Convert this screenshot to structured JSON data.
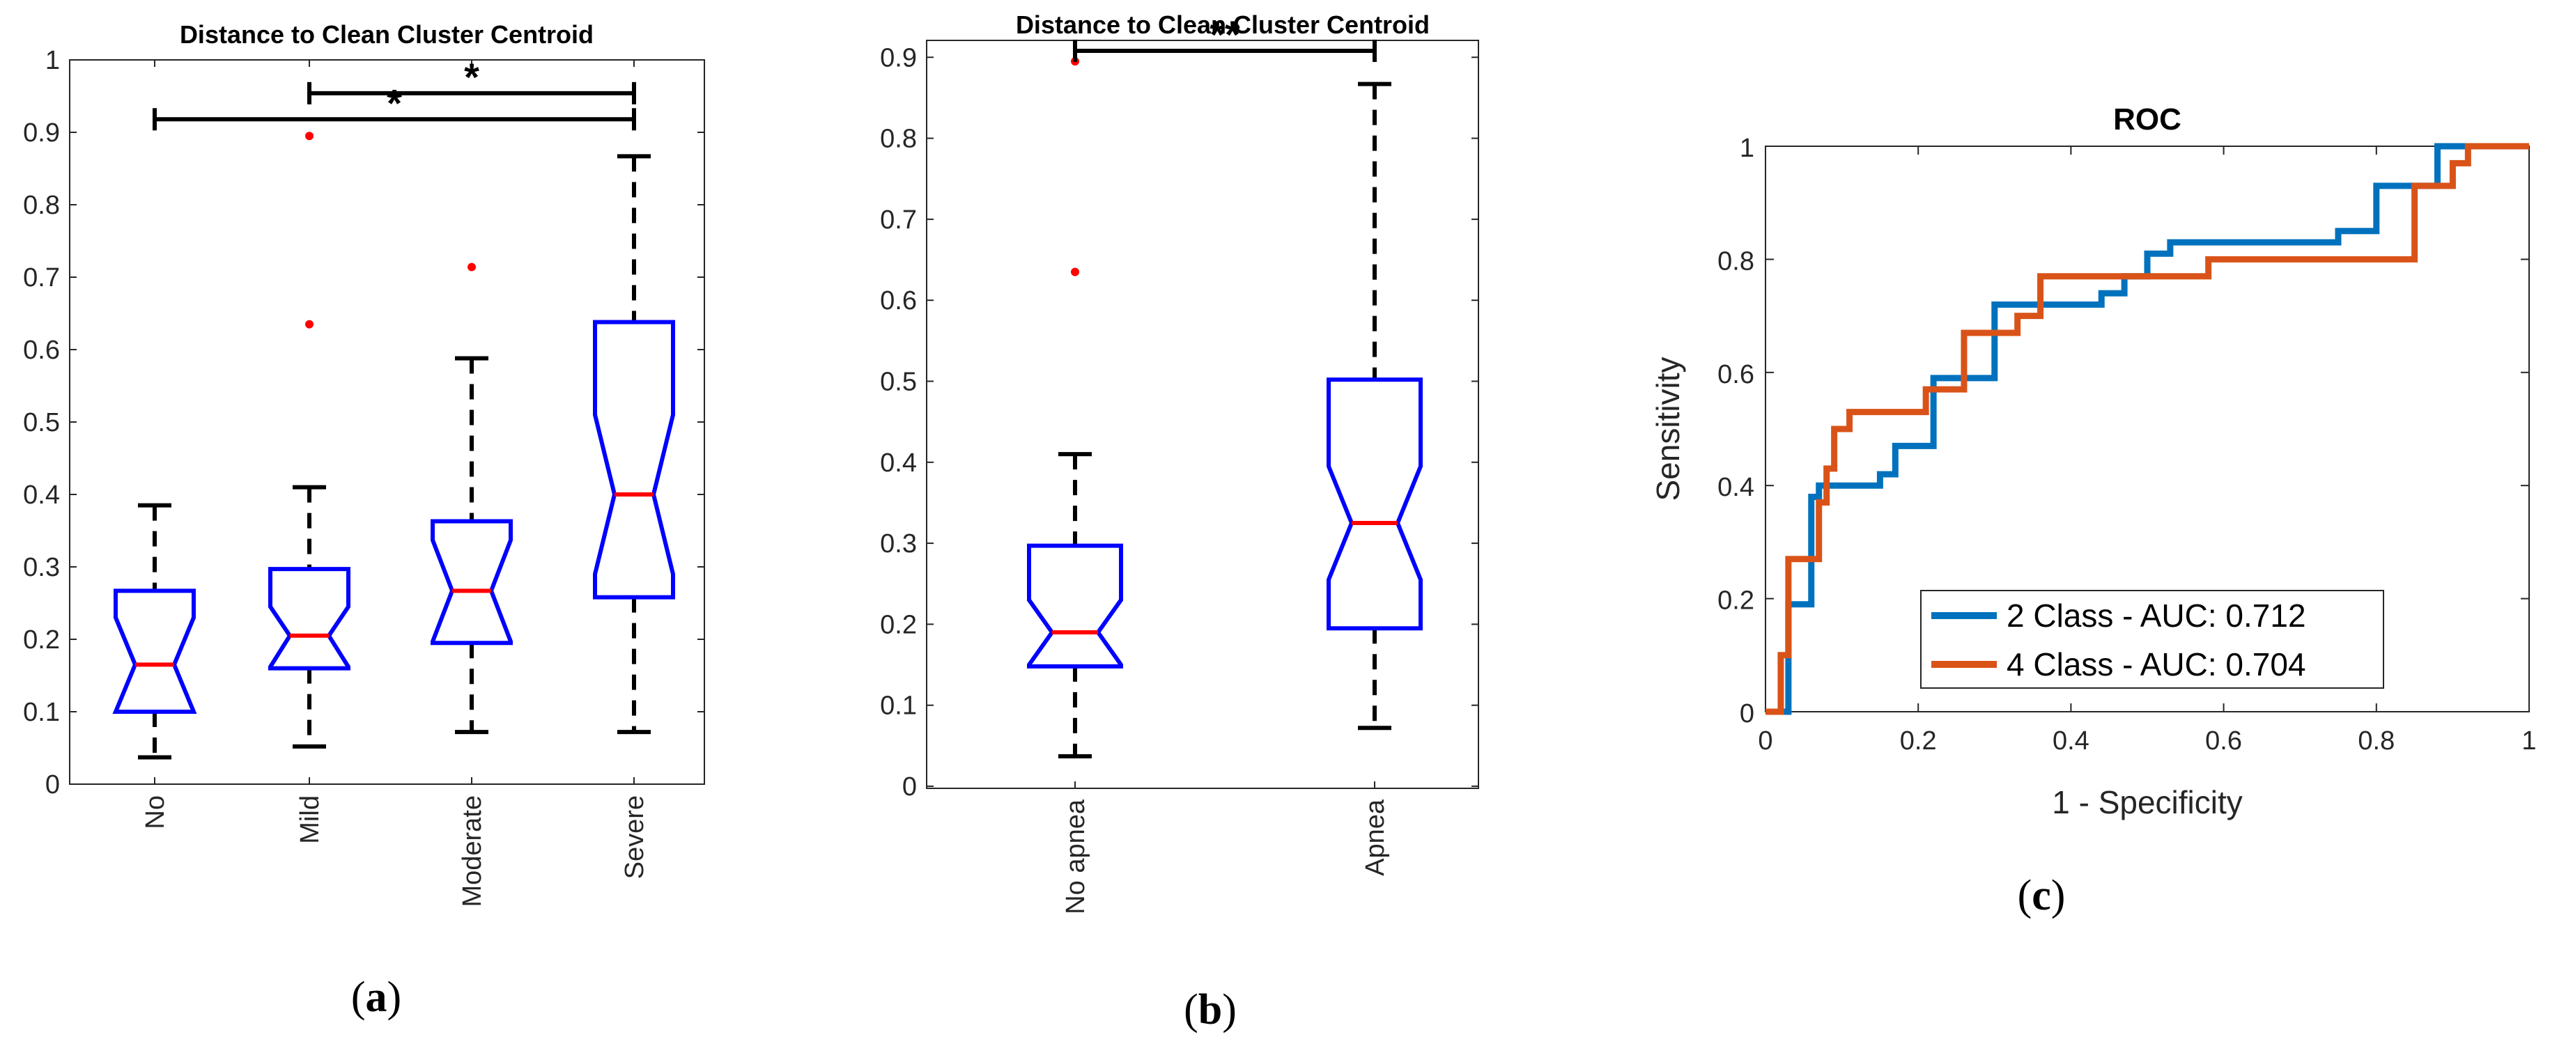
{
  "chart_data": [
    {
      "type": "boxplot",
      "panel": "a",
      "title": "Distance to Clean Cluster Centroid",
      "categories": [
        "No",
        "Mild",
        "Moderate",
        "Severe"
      ],
      "ylim": [
        0,
        1
      ],
      "yticks": [
        0,
        0.1,
        0.2,
        0.3,
        0.4,
        0.5,
        0.6,
        0.7,
        0.8,
        0.9,
        1
      ],
      "ytick_labels": [
        "0",
        "0.1",
        "0.2",
        "0.3",
        "0.4",
        "0.5",
        "0.6",
        "0.7",
        "0.8",
        "0.9",
        "1"
      ],
      "notched": true,
      "boxes": [
        {
          "name": "No",
          "whisker_low": 0.037,
          "q1": 0.1,
          "median": 0.165,
          "q3": 0.267,
          "whisker_high": 0.385,
          "notch_low": 0.1,
          "notch_high": 0.23,
          "outliers": []
        },
        {
          "name": "Mild",
          "whisker_low": 0.052,
          "q1": 0.16,
          "median": 0.205,
          "q3": 0.297,
          "whisker_high": 0.41,
          "notch_low": 0.162,
          "notch_high": 0.245,
          "outliers": [
            0.635,
            0.895
          ]
        },
        {
          "name": "Moderate",
          "whisker_low": 0.072,
          "q1": 0.195,
          "median": 0.267,
          "q3": 0.363,
          "whisker_high": 0.588,
          "notch_low": 0.197,
          "notch_high": 0.337,
          "outliers": [
            0.714
          ]
        },
        {
          "name": "Severe",
          "whisker_low": 0.072,
          "q1": 0.258,
          "median": 0.4,
          "q3": 0.638,
          "whisker_high": 0.867,
          "notch_low": 0.29,
          "notch_high": 0.51,
          "outliers": []
        }
      ],
      "significance": [
        {
          "from": "Mild",
          "to": "Severe",
          "y": 0.954,
          "label": "*"
        },
        {
          "from": "No",
          "to": "Severe",
          "y": 0.918,
          "label": "*"
        }
      ],
      "caption": "(a)"
    },
    {
      "type": "boxplot",
      "panel": "b",
      "title": "Distance to Clean Cluster Centroid",
      "categories": [
        "No apnea",
        "Apnea"
      ],
      "ylim": [
        0,
        0.92
      ],
      "yticks": [
        0,
        0.1,
        0.2,
        0.3,
        0.4,
        0.5,
        0.6,
        0.7,
        0.8,
        0.9
      ],
      "ytick_labels": [
        "0",
        "0.1",
        "0.2",
        "0.3",
        "0.4",
        "0.5",
        "0.6",
        "0.7",
        "0.8",
        "0.9"
      ],
      "notched": true,
      "boxes": [
        {
          "name": "No apnea",
          "whisker_low": 0.037,
          "q1": 0.148,
          "median": 0.19,
          "q3": 0.297,
          "whisker_high": 0.41,
          "notch_low": 0.15,
          "notch_high": 0.23,
          "outliers": [
            0.635,
            0.895
          ]
        },
        {
          "name": "Apnea",
          "whisker_low": 0.072,
          "q1": 0.195,
          "median": 0.325,
          "q3": 0.502,
          "whisker_high": 0.867,
          "notch_low": 0.255,
          "notch_high": 0.395,
          "outliers": []
        }
      ],
      "significance": [
        {
          "from": "No apnea",
          "to": "Apnea",
          "y": 0.908,
          "label": "**"
        }
      ],
      "caption": "(b)"
    },
    {
      "type": "line",
      "panel": "c",
      "title": "ROC",
      "xlabel": "1 - Specificity",
      "ylabel": "Sensitivity",
      "xlim": [
        0,
        1
      ],
      "ylim": [
        0,
        1
      ],
      "xticks": [
        0,
        0.2,
        0.4,
        0.6,
        0.8,
        1
      ],
      "xtick_labels": [
        "0",
        "0.2",
        "0.4",
        "0.6",
        "0.8",
        "1"
      ],
      "yticks": [
        0,
        0.2,
        0.4,
        0.6,
        0.8,
        1
      ],
      "ytick_labels": [
        "0",
        "0.2",
        "0.4",
        "0.6",
        "0.8",
        "1"
      ],
      "legend_position": "bottom-right",
      "series": [
        {
          "name": "2 Class - AUC: 0.712",
          "color": "#0072BD",
          "x": [
            0,
            0.03,
            0.03,
            0.04,
            0.04,
            0.06,
            0.06,
            0.07,
            0.07,
            0.12,
            0.12,
            0.15,
            0.15,
            0.17,
            0.17,
            0.22,
            0.22,
            0.27,
            0.27,
            0.3,
            0.3,
            0.38,
            0.38,
            0.44,
            0.44,
            0.47,
            0.47,
            0.5,
            0.5,
            0.53,
            0.53,
            0.75,
            0.75,
            0.8,
            0.8,
            0.88,
            0.88,
            1
          ],
          "y": [
            0,
            0,
            0.19,
            0.19,
            0.19,
            0.19,
            0.38,
            0.38,
            0.4,
            0.4,
            0.4,
            0.4,
            0.42,
            0.42,
            0.47,
            0.47,
            0.59,
            0.59,
            0.59,
            0.59,
            0.72,
            0.72,
            0.72,
            0.72,
            0.74,
            0.74,
            0.77,
            0.77,
            0.81,
            0.81,
            0.83,
            0.83,
            0.85,
            0.85,
            0.93,
            0.93,
            1,
            1
          ]
        },
        {
          "name": "4 Class - AUC: 0.704",
          "color": "#D95319",
          "x": [
            0,
            0.02,
            0.02,
            0.03,
            0.03,
            0.07,
            0.07,
            0.08,
            0.08,
            0.09,
            0.09,
            0.11,
            0.11,
            0.21,
            0.21,
            0.26,
            0.26,
            0.33,
            0.33,
            0.36,
            0.36,
            0.58,
            0.58,
            0.85,
            0.85,
            0.9,
            0.9,
            0.92,
            0.92,
            1
          ],
          "y": [
            0,
            0,
            0.1,
            0.1,
            0.27,
            0.27,
            0.37,
            0.37,
            0.43,
            0.43,
            0.5,
            0.5,
            0.53,
            0.53,
            0.57,
            0.57,
            0.67,
            0.67,
            0.7,
            0.7,
            0.77,
            0.77,
            0.8,
            0.8,
            0.93,
            0.93,
            0.97,
            0.97,
            1,
            1
          ]
        }
      ],
      "caption": "(c)"
    }
  ]
}
